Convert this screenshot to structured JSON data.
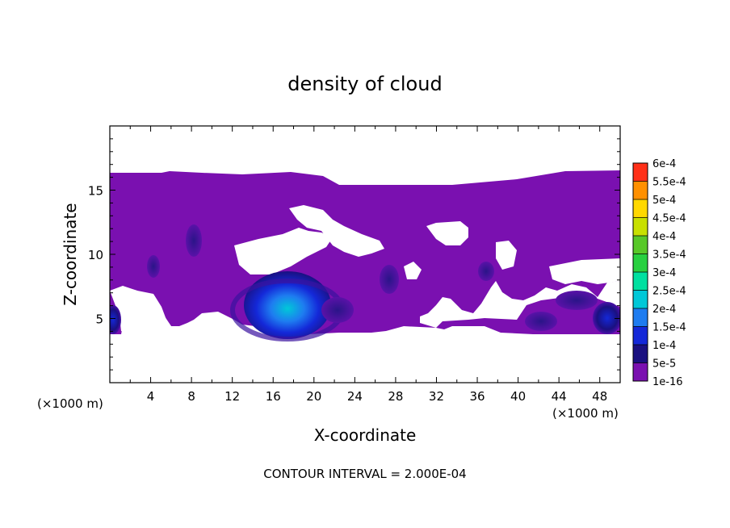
{
  "chart_data": {
    "type": "heatmap",
    "title": "density of cloud",
    "xlabel": "X-coordinate",
    "ylabel": "Z-coordinate",
    "x_unit_left": "(×1000 m)",
    "x_unit_right": "(×1000 m)",
    "xlim": [
      0,
      50
    ],
    "ylim": [
      0,
      20
    ],
    "x_ticks": [
      4,
      8,
      12,
      16,
      20,
      24,
      28,
      32,
      36,
      40,
      44,
      48
    ],
    "y_ticks": [
      5,
      10,
      15
    ],
    "footer": "CONTOUR INTERVAL = 2.000E-04",
    "colorbar": {
      "levels": [
        "1e-16",
        "5e-5",
        "1e-4",
        "1.5e-4",
        "2e-4",
        "2.5e-4",
        "3e-4",
        "3.5e-4",
        "4e-4",
        "4.5e-4",
        "5e-4",
        "5.5e-4",
        "6e-4"
      ],
      "colors": [
        "#7a10b0",
        "#1a1080",
        "#1428d8",
        "#1e7cf0",
        "#00c8d8",
        "#00e0a0",
        "#28d040",
        "#58c828",
        "#c8e000",
        "#ffd800",
        "#ff9000",
        "#ff3018",
        "#ff9090"
      ]
    },
    "regions": [
      {
        "name": "main-cloud-layer",
        "value": 1e-16,
        "x": [
          0,
          50
        ],
        "z": [
          4,
          16.3
        ]
      },
      {
        "name": "core-x18",
        "value": 0.00015,
        "x_center": 18.5,
        "z_center": 5.8
      },
      {
        "name": "core-x49",
        "value": 0.0001,
        "x_center": 49.2,
        "z_center": 5.0
      },
      {
        "name": "core-x0",
        "value": 0.0001,
        "x_center": 0.3,
        "z_center": 5.0
      },
      {
        "name": "core-x8",
        "value": 5e-05,
        "x_center": 8.3,
        "z_center": 11.0
      },
      {
        "name": "core-x4",
        "value": 5e-05,
        "x_center": 4.3,
        "z_center": 9.2
      },
      {
        "name": "core-x27",
        "value": 5e-05,
        "x_center": 27.2,
        "z_center": 8.0
      },
      {
        "name": "core-x36",
        "value": 5e-05,
        "x_center": 36.5,
        "z_center": 8.7
      },
      {
        "name": "core-x42",
        "value": 5e-05,
        "x_center": 42.0,
        "z_center": 5.2
      },
      {
        "name": "core-x45",
        "value": 5e-05,
        "x_center": 45.5,
        "z_center": 6.5
      }
    ]
  }
}
